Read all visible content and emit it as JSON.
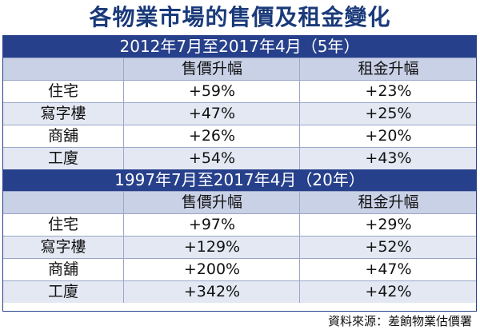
{
  "title": "各物業市場的售價及租金變化",
  "sections": [
    {
      "period": "2012年7月至2017年4月（5年）",
      "headers": [
        "",
        "售價升幅",
        "租金升幅"
      ],
      "rows": [
        [
          "住宅",
          "+59%",
          "+23%"
        ],
        [
          "寫字樓",
          "+47%",
          "+25%"
        ],
        [
          "商舖",
          "+26%",
          "+20%"
        ],
        [
          "工廈",
          "+54%",
          "+43%"
        ]
      ]
    },
    {
      "period": "1997年7月至2017年4月（20年）",
      "headers": [
        "",
        "售價升幅",
        "租金升幅"
      ],
      "rows": [
        [
          "住宅",
          "+97%",
          "+29%"
        ],
        [
          "寫字樓",
          "+129%",
          "+52%"
        ],
        [
          "商舖",
          "+200%",
          "+47%"
        ],
        [
          "工廈",
          "+342%",
          "+42%"
        ]
      ]
    }
  ],
  "source": "資料來源：差餉物業估價署"
}
